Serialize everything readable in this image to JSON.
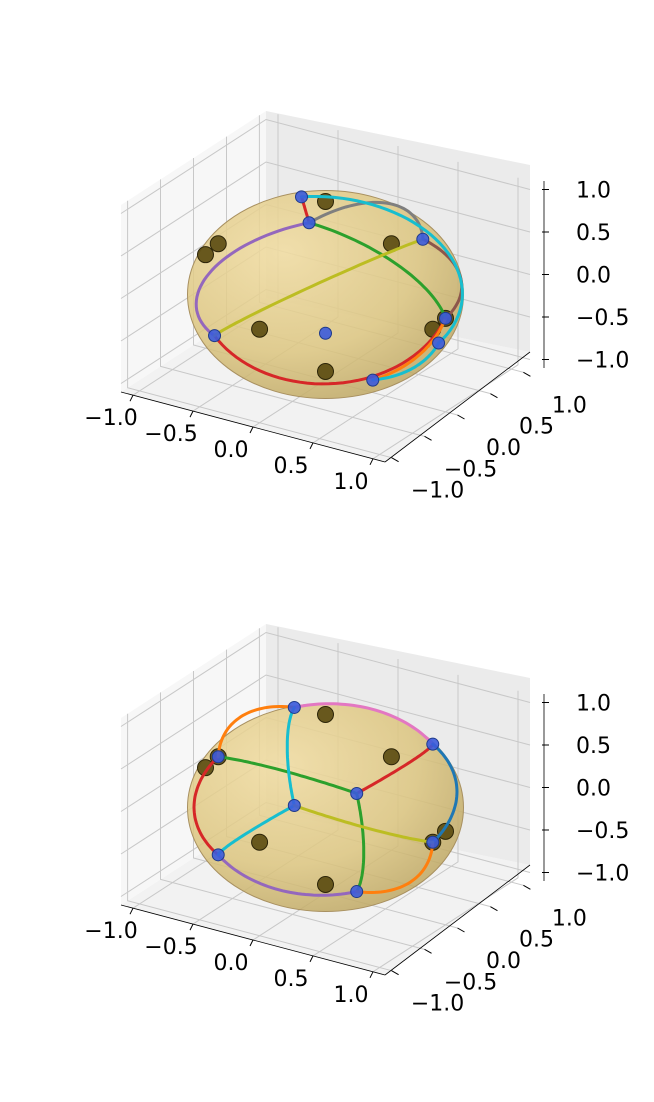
{
  "chart_data": [
    {
      "type": "3d-scatter-with-curves",
      "title": "",
      "xlabel": "",
      "ylabel": "",
      "zlabel": "",
      "xlim": [
        -1.1,
        1.1
      ],
      "ylim": [
        -1.1,
        1.1
      ],
      "zlim": [
        -1.1,
        1.1
      ],
      "x_ticks": [
        "−1.0",
        "−0.5",
        "0.0",
        "0.5",
        "1.0"
      ],
      "y_ticks": [
        "−1.0",
        "−0.5",
        "0.0",
        "0.5",
        "1.0"
      ],
      "z_ticks": [
        "−1.0",
        "−0.5",
        "0.0",
        "0.5",
        "1.0"
      ],
      "sphere": {
        "radius": 1.0,
        "color": "#d9b44a"
      },
      "dark_points": [
        [
          0.0,
          0.0,
          1.0
        ],
        [
          0.0,
          0.0,
          -1.0
        ],
        [
          -1.0,
          0.0,
          0.0
        ],
        [
          1.0,
          0.0,
          0.0
        ],
        [
          0.0,
          -1.0,
          0.0
        ],
        [
          0.0,
          1.0,
          0.0
        ],
        [
          -0.577,
          -0.577,
          0.577
        ],
        [
          0.577,
          0.577,
          -0.577
        ]
      ],
      "blue_points": [
        [
          -0.2,
          0.0,
          0.98
        ],
        [
          -0.65,
          -0.5,
          -0.57
        ],
        [
          1.0,
          0.0,
          0.0
        ],
        [
          0.63,
          -0.43,
          -0.65
        ],
        [
          0.75,
          0.35,
          -0.56
        ],
        [
          0.3,
          0.93,
          0.2
        ],
        [
          0.05,
          -0.34,
          0.94
        ],
        [
          0.0,
          0.0,
          -0.55
        ]
      ],
      "curves": [
        {
          "color": "#d62728",
          "points": [
            0,
            6
          ]
        },
        {
          "color": "#d62728",
          "points": [
            1,
            2
          ]
        },
        {
          "color": "#2ca02c",
          "points": [
            6,
            2
          ]
        },
        {
          "color": "#ff7f0e",
          "points": [
            2,
            3
          ]
        },
        {
          "color": "#8c564b",
          "points": [
            2,
            5
          ]
        },
        {
          "color": "#9467bd",
          "points": [
            6,
            1
          ]
        },
        {
          "color": "#bcbd22",
          "points": [
            1,
            5
          ]
        },
        {
          "color": "#7f7f7f",
          "points": [
            6,
            5
          ]
        },
        {
          "color": "#17becf",
          "points": [
            0,
            4
          ]
        },
        {
          "color": "#17becf",
          "points": [
            4,
            3
          ]
        }
      ]
    },
    {
      "type": "3d-scatter-with-curves",
      "title": "",
      "xlabel": "",
      "ylabel": "",
      "zlabel": "",
      "xlim": [
        -1.1,
        1.1
      ],
      "ylim": [
        -1.1,
        1.1
      ],
      "zlim": [
        -1.1,
        1.1
      ],
      "x_ticks": [
        "−1.0",
        "−0.5",
        "0.0",
        "0.5",
        "1.0"
      ],
      "y_ticks": [
        "−1.0",
        "−0.5",
        "0.0",
        "0.5",
        "1.0"
      ],
      "z_ticks": [
        "−1.0",
        "−0.5",
        "0.0",
        "0.5",
        "1.0"
      ],
      "sphere": {
        "radius": 1.0,
        "color": "#d9b44a"
      },
      "dark_points": [
        [
          0.0,
          0.0,
          1.0
        ],
        [
          0.0,
          0.0,
          -1.0
        ],
        [
          -1.0,
          0.0,
          0.0
        ],
        [
          1.0,
          0.0,
          0.0
        ],
        [
          0.0,
          -1.0,
          0.0
        ],
        [
          0.0,
          1.0,
          0.0
        ],
        [
          -0.577,
          -0.577,
          0.577
        ],
        [
          0.577,
          0.577,
          -0.577
        ]
      ],
      "blue_points": [
        [
          -0.577,
          -0.577,
          0.577
        ],
        [
          0.577,
          -0.577,
          0.577
        ],
        [
          -0.577,
          0.577,
          0.577
        ],
        [
          0.577,
          0.577,
          0.577
        ],
        [
          -0.577,
          -0.577,
          -0.577
        ],
        [
          0.577,
          -0.577,
          -0.577
        ],
        [
          -0.577,
          0.577,
          -0.577
        ],
        [
          0.577,
          0.577,
          -0.577
        ]
      ],
      "curves": [
        {
          "color": "#2ca02c",
          "points": [
            0,
            1
          ]
        },
        {
          "color": "#d62728",
          "points": [
            0,
            4
          ]
        },
        {
          "color": "#ff7f0e",
          "points": [
            0,
            2
          ]
        },
        {
          "color": "#d62728",
          "points": [
            1,
            3
          ]
        },
        {
          "color": "#2ca02c",
          "points": [
            1,
            5
          ]
        },
        {
          "color": "#e377c2",
          "points": [
            2,
            3
          ]
        },
        {
          "color": "#9467bd",
          "points": [
            4,
            5
          ]
        },
        {
          "color": "#17becf",
          "points": [
            2,
            6
          ]
        },
        {
          "color": "#17becf",
          "points": [
            4,
            6
          ]
        },
        {
          "color": "#1f77b4",
          "points": [
            3,
            7
          ]
        },
        {
          "color": "#ff7f0e",
          "points": [
            5,
            7
          ]
        },
        {
          "color": "#bcbd22",
          "points": [
            6,
            7
          ]
        }
      ]
    }
  ]
}
